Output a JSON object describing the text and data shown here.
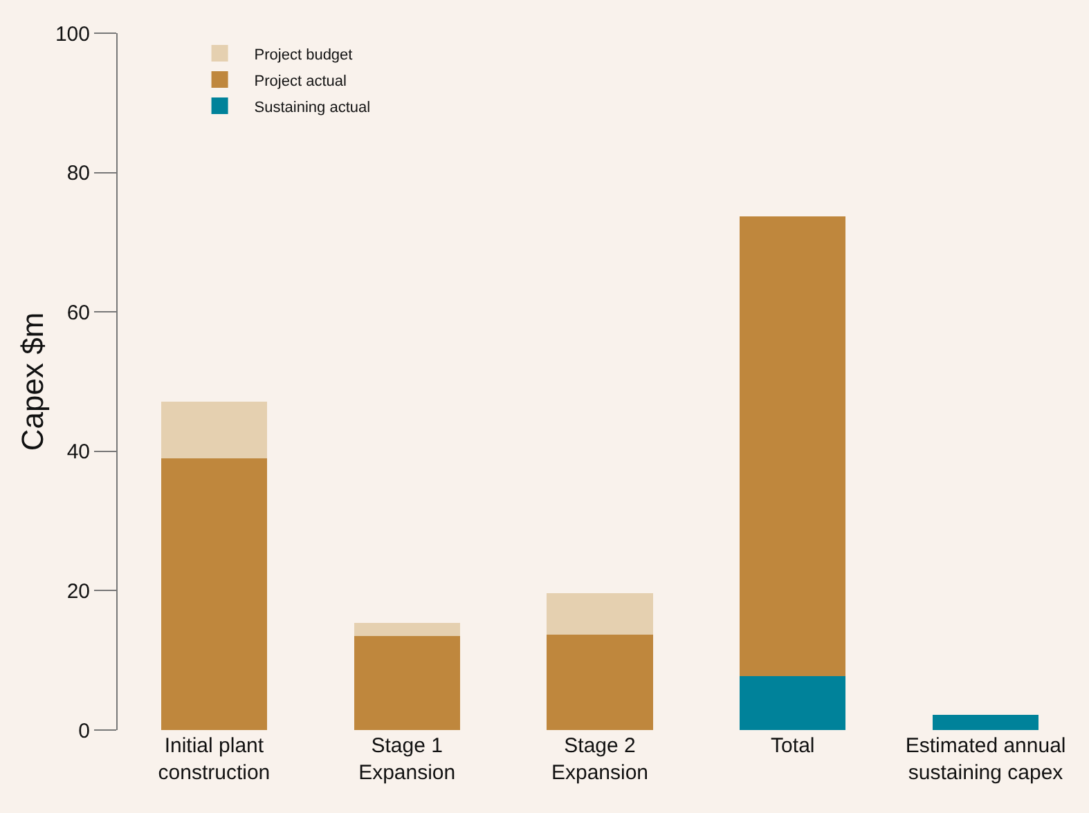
{
  "chart_data": {
    "type": "bar",
    "stacked": true,
    "ylabel": "Capex $m",
    "categories": [
      "Initial plant construction",
      "Stage 1 Expansion",
      "Stage 2 Expansion",
      "Total",
      "Estimated annual sustaining capex"
    ],
    "series": [
      {
        "name": "Sustaining actual",
        "color": "#00829a",
        "values": [
          null,
          null,
          null,
          7.7,
          2.2
        ]
      },
      {
        "name": "Project actual",
        "color": "#bf873d",
        "values": [
          39,
          13.5,
          13.7,
          66,
          null
        ]
      },
      {
        "name": "Project budget",
        "color": "#e5d0b0",
        "values": [
          8.1,
          1.9,
          5.9,
          null,
          null
        ]
      }
    ],
    "ylim": [
      0,
      100
    ],
    "yticks": [
      0,
      20,
      40,
      60,
      80,
      100
    ],
    "grid": false,
    "legend": "top left"
  }
}
